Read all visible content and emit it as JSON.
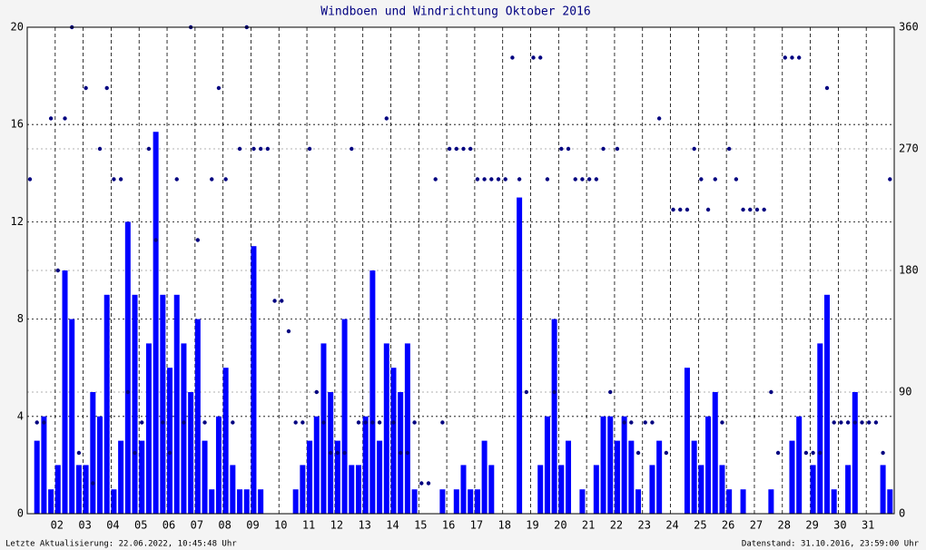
{
  "chart_data": {
    "type": "combo",
    "title": "Windboen und Windrichtung Oktober 2016",
    "footer_left": "Letzte Aktualisierung: 22.06.2022, 10:45:48 Uhr",
    "footer_right": "Datenstand: 31.10.2016, 23:59:00 Uhr",
    "x": [
      1,
      1.25,
      1.5,
      1.75,
      2,
      2.25,
      2.5,
      2.75,
      3,
      3.25,
      3.5,
      3.75,
      4,
      4.25,
      4.5,
      4.75,
      5,
      5.25,
      5.5,
      5.75,
      6,
      6.25,
      6.5,
      6.75,
      7,
      7.25,
      7.5,
      7.75,
      8,
      8.25,
      8.5,
      8.75,
      9,
      9.25,
      9.5,
      9.75,
      10,
      10.25,
      10.5,
      10.75,
      11,
      11.25,
      11.5,
      11.75,
      12,
      12.25,
      12.5,
      12.75,
      13,
      13.25,
      13.5,
      13.75,
      14,
      14.25,
      14.5,
      14.75,
      15,
      15.25,
      15.5,
      15.75,
      16,
      16.25,
      16.5,
      16.75,
      17,
      17.25,
      17.5,
      17.75,
      18,
      18.25,
      18.5,
      18.75,
      19,
      19.25,
      19.5,
      19.75,
      20,
      20.25,
      20.5,
      20.75,
      21,
      21.25,
      21.5,
      21.75,
      22,
      22.25,
      22.5,
      22.75,
      23,
      23.25,
      23.5,
      23.75,
      24,
      24.25,
      24.5,
      24.75,
      25,
      25.25,
      25.5,
      25.75,
      26,
      26.25,
      26.5,
      26.75,
      27,
      27.25,
      27.5,
      27.75,
      28,
      28.25,
      28.5,
      28.75,
      29,
      29.25,
      29.5,
      29.75,
      30,
      30.25,
      30.5,
      30.75,
      31,
      31.25,
      31.5,
      31.75
    ],
    "series": [
      {
        "name": "Windboen",
        "type": "bar",
        "color": "#0000ff",
        "values": [
          0,
          3,
          4,
          1,
          2,
          10,
          8,
          2,
          2,
          5,
          4,
          9,
          1,
          3,
          12,
          9,
          3,
          7,
          15.7,
          9,
          6,
          9,
          7,
          5,
          8,
          3,
          1,
          4,
          6,
          2,
          1,
          1,
          11,
          1,
          0,
          0,
          0,
          0,
          1,
          2,
          3,
          4,
          7,
          5,
          3,
          8,
          2,
          2,
          4,
          10,
          3,
          7,
          6,
          5,
          7,
          1,
          0,
          0,
          0,
          1,
          0,
          1,
          2,
          1,
          1,
          3,
          2,
          0,
          0,
          0,
          13,
          0,
          0,
          2,
          4,
          8,
          2,
          3,
          0,
          1,
          0,
          2,
          4,
          4,
          3,
          4,
          3,
          1,
          0,
          2,
          3,
          0,
          0,
          0,
          6,
          3,
          2,
          4,
          5,
          2,
          1,
          0,
          1,
          0,
          0,
          0,
          1,
          0,
          0,
          3,
          4,
          0,
          2,
          7,
          9,
          1,
          0,
          2,
          5,
          0,
          0,
          0,
          2,
          1
        ]
      },
      {
        "name": "Windrichtung",
        "type": "scatter",
        "axis": "y2",
        "color": "#000080",
        "values": [
          247.5,
          67.5,
          67.5,
          292.5,
          180,
          292.5,
          360,
          45,
          315,
          22.5,
          270,
          315,
          247.5,
          247.5,
          90,
          45,
          67.5,
          270,
          202.5,
          67.5,
          45,
          247.5,
          67.5,
          360,
          202.5,
          67.5,
          247.5,
          315,
          247.5,
          67.5,
          270,
          360,
          270,
          270,
          270,
          157.5,
          157.5,
          135,
          67.5,
          67.5,
          270,
          90,
          67.5,
          45,
          45,
          45,
          270,
          67.5,
          67.5,
          67.5,
          67.5,
          292.5,
          67.5,
          45,
          45,
          67.5,
          22.5,
          22.5,
          247.5,
          67.5,
          270,
          270,
          270,
          270,
          247.5,
          247.5,
          247.5,
          247.5,
          247.5,
          337.5,
          247.5,
          90,
          337.5,
          337.5,
          247.5,
          90,
          270,
          270,
          247.5,
          247.5,
          247.5,
          247.5,
          270,
          90,
          270,
          67.5,
          67.5,
          45,
          67.5,
          67.5,
          292.5,
          45,
          225,
          225,
          225,
          270,
          247.5,
          225,
          247.5,
          67.5,
          270,
          247.5,
          225,
          225,
          225,
          225,
          90,
          45,
          337.5,
          337.5,
          337.5,
          45,
          45,
          45,
          315,
          67.5,
          67.5,
          67.5,
          67.5,
          67.5,
          67.5,
          67.5,
          45,
          247.5
        ]
      }
    ],
    "xlim": [
      1,
      32
    ],
    "xticks": [
      {
        "value": 2,
        "label": "02"
      },
      {
        "value": 3,
        "label": "03"
      },
      {
        "value": 4,
        "label": "04"
      },
      {
        "value": 5,
        "label": "05"
      },
      {
        "value": 6,
        "label": "06"
      },
      {
        "value": 7,
        "label": "07"
      },
      {
        "value": 8,
        "label": "08"
      },
      {
        "value": 9,
        "label": "09"
      },
      {
        "value": 10,
        "label": "10"
      },
      {
        "value": 11,
        "label": "11"
      },
      {
        "value": 12,
        "label": "12"
      },
      {
        "value": 13,
        "label": "13"
      },
      {
        "value": 14,
        "label": "14"
      },
      {
        "value": 15,
        "label": "15"
      },
      {
        "value": 16,
        "label": "16"
      },
      {
        "value": 17,
        "label": "17"
      },
      {
        "value": 18,
        "label": "18"
      },
      {
        "value": 19,
        "label": "19"
      },
      {
        "value": 20,
        "label": "20"
      },
      {
        "value": 21,
        "label": "21"
      },
      {
        "value": 22,
        "label": "22"
      },
      {
        "value": 23,
        "label": "23"
      },
      {
        "value": 24,
        "label": "24"
      },
      {
        "value": 25,
        "label": "25"
      },
      {
        "value": 26,
        "label": "26"
      },
      {
        "value": 27,
        "label": "27"
      },
      {
        "value": 28,
        "label": "28"
      },
      {
        "value": 29,
        "label": "29"
      },
      {
        "value": 30,
        "label": "30"
      },
      {
        "value": 31,
        "label": "31"
      }
    ],
    "ylim": [
      0,
      20
    ],
    "yticks": [
      0,
      4,
      8,
      12,
      16,
      20
    ],
    "y2lim": [
      0,
      360
    ],
    "y2ticks": [
      0,
      90,
      180,
      270,
      360
    ],
    "grid": true
  }
}
